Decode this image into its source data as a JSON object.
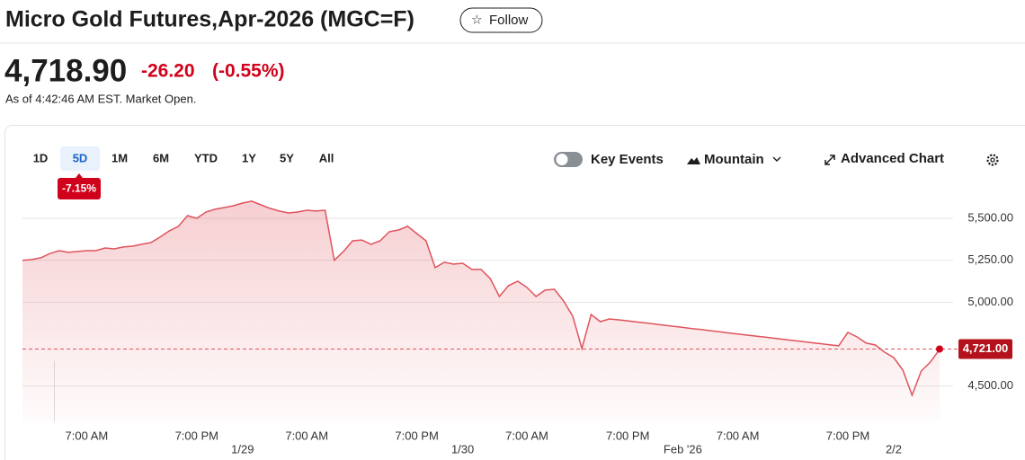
{
  "header": {
    "title": "Micro Gold Futures,Apr-2026 (MGC=F)",
    "follow": "Follow",
    "price": "4,718.90",
    "change": "-26.20",
    "change_percent": "(-0.55%)",
    "as_of": "As of 4:42:46 AM EST. Market Open."
  },
  "toolbar": {
    "ranges": [
      "1D",
      "5D",
      "1M",
      "6M",
      "YTD",
      "1Y",
      "5Y",
      "All"
    ],
    "selected_range": "5D",
    "range_change": "-7.15%",
    "key_events": "Key Events",
    "chart_style": "Mountain",
    "advanced_chart": "Advanced Chart"
  },
  "chart_data": {
    "type": "area",
    "categories": [
      null,
      null,
      null,
      null,
      null,
      null,
      null,
      "7:00 AM",
      null,
      null,
      null,
      null,
      null,
      null,
      null,
      null,
      null,
      null,
      null,
      "7:00 PM",
      null,
      null,
      null,
      null,
      null,
      null,
      null,
      null,
      null,
      null,
      null,
      "7:00 AM",
      null,
      null,
      null,
      null,
      null,
      null,
      null,
      null,
      null,
      null,
      null,
      "7:00 PM",
      null,
      null,
      null,
      null,
      null,
      null,
      null,
      null,
      null,
      null,
      null,
      "7:00 AM",
      null,
      null,
      null,
      null,
      null,
      null,
      null,
      null,
      null,
      null,
      "7:00 PM",
      null,
      null,
      null,
      null,
      null,
      null,
      null,
      null,
      null,
      null,
      null,
      "7:00 AM",
      null,
      null,
      null,
      null,
      null,
      null,
      null,
      null,
      null,
      null,
      null,
      "7:00 PM",
      null,
      null,
      null,
      null,
      null,
      null,
      null,
      null,
      null,
      null
    ],
    "category_dates": [
      null,
      null,
      null,
      null,
      null,
      null,
      null,
      null,
      null,
      null,
      null,
      null,
      null,
      null,
      null,
      null,
      null,
      null,
      null,
      null,
      null,
      null,
      null,
      null,
      "1/29",
      null,
      null,
      null,
      null,
      null,
      null,
      null,
      null,
      null,
      null,
      null,
      null,
      null,
      null,
      null,
      null,
      null,
      null,
      null,
      null,
      null,
      null,
      null,
      "1/30",
      null,
      null,
      null,
      null,
      null,
      null,
      null,
      null,
      null,
      null,
      null,
      null,
      null,
      null,
      null,
      null,
      null,
      null,
      null,
      null,
      null,
      null,
      null,
      "Feb '26",
      null,
      null,
      null,
      null,
      null,
      null,
      null,
      null,
      null,
      null,
      null,
      null,
      null,
      null,
      null,
      null,
      null,
      null,
      null,
      null,
      null,
      null,
      "2/2",
      null,
      null,
      null,
      null,
      null
    ],
    "series": [
      {
        "color": "#e0535c",
        "values": [
          5250,
          5254,
          5265,
          5290,
          5307,
          5297,
          5302,
          5307,
          5307,
          5323,
          5318,
          5329,
          5334,
          5345,
          5355,
          5388,
          5425,
          5452,
          5516,
          5500,
          5537,
          5554,
          5564,
          5575,
          5591,
          5602,
          5580,
          5559,
          5543,
          5532,
          5537,
          5548,
          5543,
          5548,
          5250,
          5302,
          5366,
          5371,
          5345,
          5366,
          5420,
          5430,
          5452,
          5409,
          5366,
          5206,
          5238,
          5227,
          5232,
          5195,
          5195,
          5141,
          5034,
          5099,
          5125,
          5088,
          5034,
          5072,
          5077,
          5008,
          4917,
          4724,
          4927,
          4884,
          4900,
          4895,
          4889,
          4882,
          4876,
          4869,
          4863,
          4856,
          4850,
          4843,
          4837,
          4830,
          4824,
          4817,
          4811,
          4804,
          4798,
          4792,
          4785,
          4779,
          4772,
          4766,
          4759,
          4753,
          4746,
          4740,
          4820,
          4793,
          4756,
          4745,
          4702,
          4670,
          4595,
          4446,
          4590,
          4644,
          4719
        ]
      }
    ],
    "ylim": [
      4290,
      5700
    ],
    "yticks": [
      {
        "value": 4500,
        "label": "4,500.00"
      },
      {
        "value": 5000,
        "label": "5,000.00"
      },
      {
        "value": 5250,
        "label": "5,250.00"
      },
      {
        "value": 5500,
        "label": "5,500.00"
      }
    ],
    "grid": true,
    "current": {
      "value": 4721,
      "label": "4,721.00"
    }
  }
}
